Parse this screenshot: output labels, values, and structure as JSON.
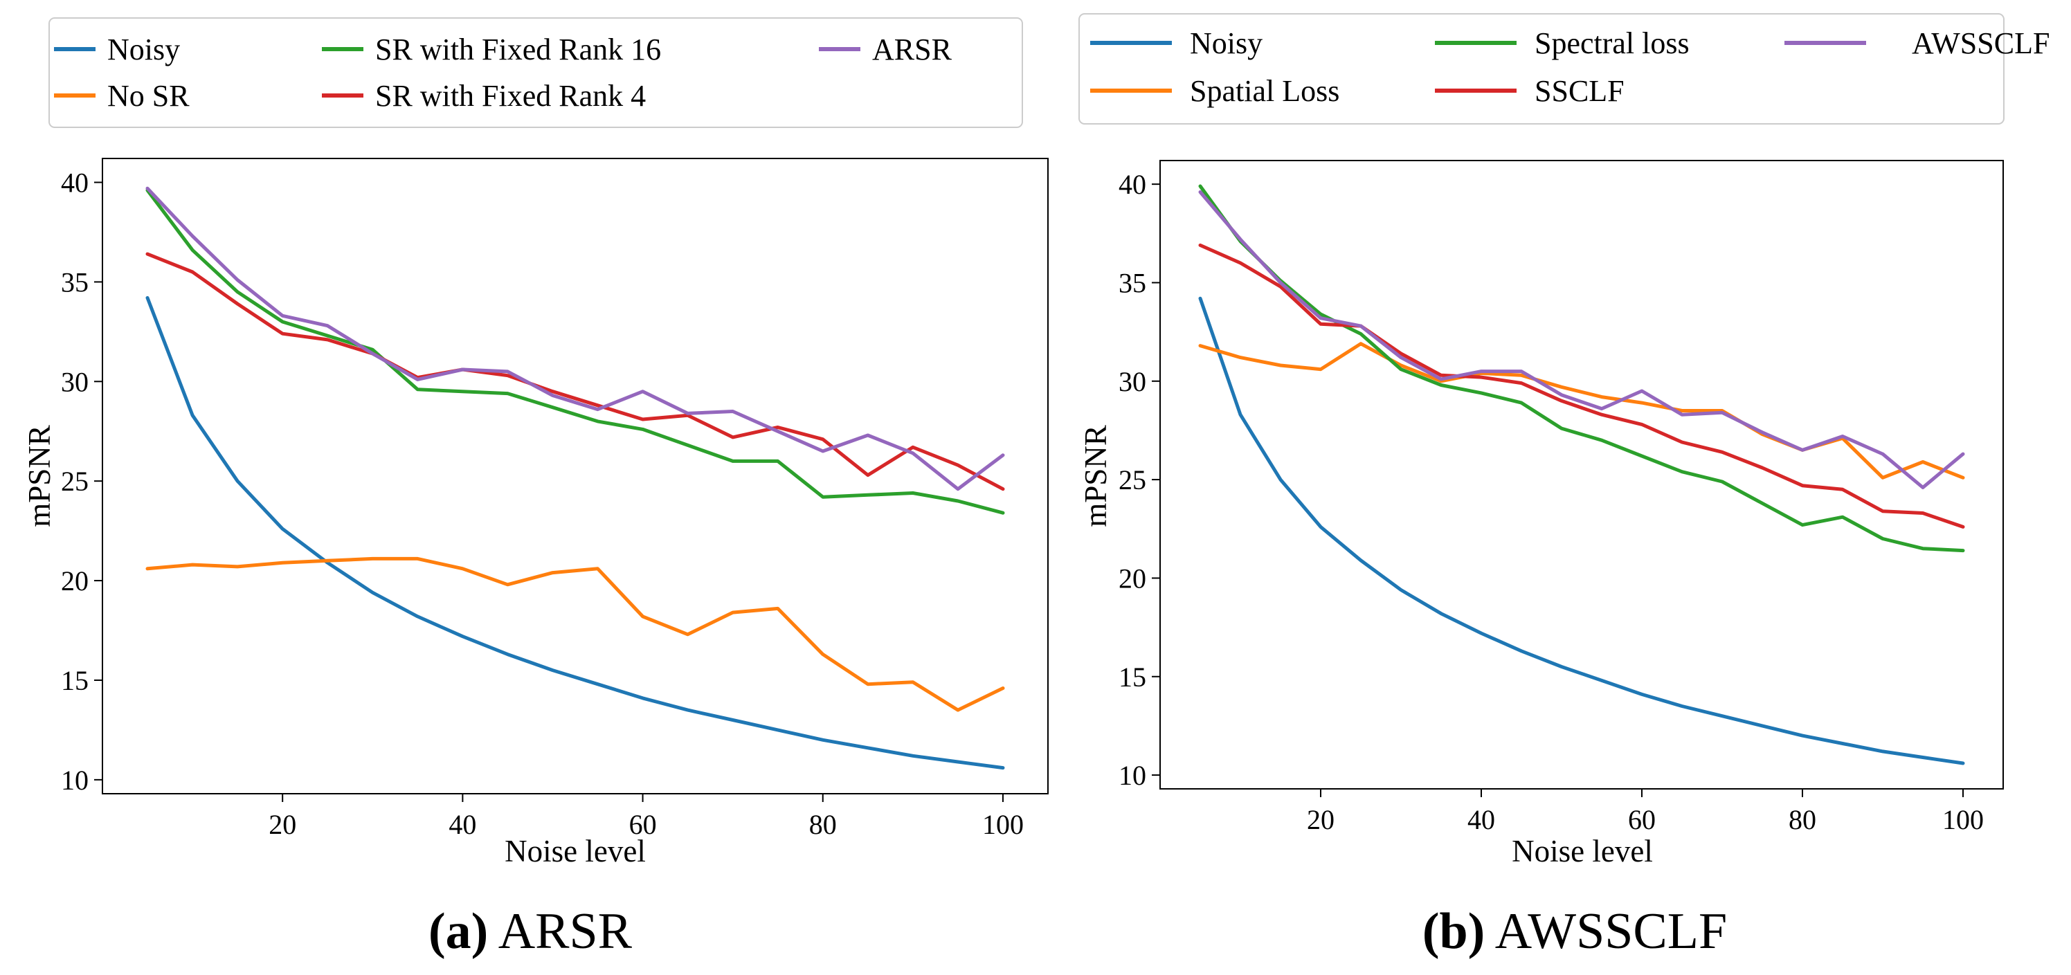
{
  "figure_captions": [
    {
      "letter": "(a)",
      "name": "ARSR"
    },
    {
      "letter": "(b)",
      "name": "AWSSCLF"
    }
  ],
  "colors": {
    "blue": "#1f77b4",
    "orange": "#ff7f0e",
    "green": "#2ca02c",
    "red": "#d62728",
    "purple": "#9467bd"
  },
  "chart_data": [
    {
      "type": "line",
      "title": "",
      "caption": "(a) ARSR",
      "xlabel": "Noise level",
      "ylabel": "mPSNR",
      "xlim": [
        0,
        105
      ],
      "ylim": [
        9.3,
        41.2
      ],
      "xticks": [
        20,
        40,
        60,
        80,
        100
      ],
      "yticks": [
        10,
        15,
        20,
        25,
        30,
        35,
        40
      ],
      "grid": false,
      "legend_position": "top",
      "legend_columns": 3,
      "x": [
        5,
        10,
        15,
        20,
        25,
        30,
        35,
        40,
        45,
        50,
        55,
        60,
        65,
        70,
        75,
        80,
        85,
        90,
        95,
        100
      ],
      "series": [
        {
          "name": "Noisy",
          "color": "#1f77b4",
          "values": [
            34.2,
            28.3,
            25.0,
            22.6,
            20.9,
            19.4,
            18.2,
            17.2,
            16.3,
            15.5,
            14.8,
            14.1,
            13.5,
            13.0,
            12.5,
            12.0,
            11.6,
            11.2,
            10.9,
            10.6
          ]
        },
        {
          "name": "No SR",
          "color": "#ff7f0e",
          "values": [
            20.6,
            20.8,
            20.7,
            20.9,
            21.0,
            21.1,
            21.1,
            20.6,
            19.8,
            20.4,
            20.6,
            18.2,
            17.3,
            18.4,
            18.6,
            16.3,
            14.8,
            14.9,
            13.5,
            14.6
          ]
        },
        {
          "name": "SR with Fixed Rank 16",
          "color": "#2ca02c",
          "values": [
            39.6,
            36.6,
            34.5,
            33.0,
            32.3,
            31.6,
            29.6,
            29.5,
            29.4,
            28.7,
            28.0,
            27.6,
            26.8,
            26.0,
            26.0,
            24.2,
            24.3,
            24.4,
            24.0,
            23.4
          ]
        },
        {
          "name": "SR with Fixed Rank 4",
          "color": "#d62728",
          "values": [
            36.4,
            35.5,
            33.9,
            32.4,
            32.1,
            31.4,
            30.2,
            30.6,
            30.3,
            29.5,
            28.8,
            28.1,
            28.3,
            27.2,
            27.7,
            27.1,
            25.3,
            26.7,
            25.8,
            24.6
          ]
        },
        {
          "name": "ARSR",
          "color": "#9467bd",
          "values": [
            39.7,
            37.3,
            35.1,
            33.3,
            32.8,
            31.4,
            30.1,
            30.6,
            30.5,
            29.3,
            28.6,
            29.5,
            28.4,
            28.5,
            27.5,
            26.5,
            27.3,
            26.4,
            24.6,
            26.3
          ]
        }
      ]
    },
    {
      "type": "line",
      "title": "",
      "caption": "(b) AWSSCLF",
      "xlabel": "Noise level",
      "ylabel": "mPSNR",
      "xlim": [
        0,
        105
      ],
      "ylim": [
        9.3,
        41.2
      ],
      "xticks": [
        20,
        40,
        60,
        80,
        100
      ],
      "yticks": [
        10,
        15,
        20,
        25,
        30,
        35,
        40
      ],
      "grid": false,
      "legend_position": "top",
      "legend_columns": 3,
      "x": [
        5,
        10,
        15,
        20,
        25,
        30,
        35,
        40,
        45,
        50,
        55,
        60,
        65,
        70,
        75,
        80,
        85,
        90,
        95,
        100
      ],
      "series": [
        {
          "name": "Noisy",
          "color": "#1f77b4",
          "values": [
            34.2,
            28.3,
            25.0,
            22.6,
            20.9,
            19.4,
            18.2,
            17.2,
            16.3,
            15.5,
            14.8,
            14.1,
            13.5,
            13.0,
            12.5,
            12.0,
            11.6,
            11.2,
            10.9,
            10.6
          ]
        },
        {
          "name": "Spatial Loss",
          "color": "#ff7f0e",
          "values": [
            31.8,
            31.2,
            30.8,
            30.6,
            31.9,
            30.8,
            30.0,
            30.4,
            30.3,
            29.7,
            29.2,
            28.9,
            28.5,
            28.5,
            27.3,
            26.5,
            27.1,
            25.1,
            25.9,
            25.1
          ]
        },
        {
          "name": "Spectral loss",
          "color": "#2ca02c",
          "values": [
            39.9,
            37.1,
            35.1,
            33.4,
            32.4,
            30.6,
            29.8,
            29.4,
            28.9,
            27.6,
            27.0,
            26.2,
            25.4,
            24.9,
            23.8,
            22.7,
            23.1,
            22.0,
            21.5,
            21.4
          ]
        },
        {
          "name": "SSCLF",
          "color": "#d62728",
          "values": [
            36.9,
            36.0,
            34.8,
            32.9,
            32.8,
            31.4,
            30.3,
            30.2,
            29.9,
            29.0,
            28.3,
            27.8,
            26.9,
            26.4,
            25.6,
            24.7,
            24.5,
            23.4,
            23.3,
            22.6
          ]
        },
        {
          "name": "AWSSCLF",
          "color": "#9467bd",
          "values": [
            39.6,
            37.2,
            35.0,
            33.2,
            32.8,
            31.2,
            30.1,
            30.5,
            30.5,
            29.3,
            28.6,
            29.5,
            28.3,
            28.4,
            27.4,
            26.5,
            27.2,
            26.3,
            24.6,
            26.3
          ]
        }
      ]
    }
  ]
}
